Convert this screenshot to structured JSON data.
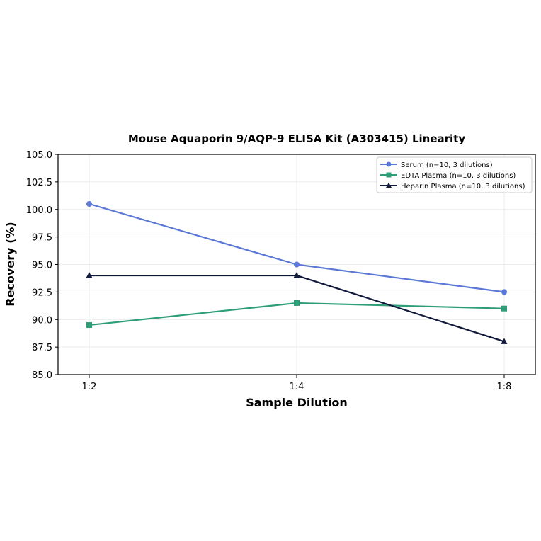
{
  "chart_data": {
    "type": "line",
    "title": "Mouse Aquaporin 9/AQP-9 ELISA Kit (A303415) Linearity",
    "xlabel": "Sample Dilution",
    "ylabel": "Recovery (%)",
    "categories": [
      "1:2",
      "1:4",
      "1:8"
    ],
    "ylim": [
      85.0,
      105.0
    ],
    "yticks": [
      "85.0",
      "87.5",
      "90.0",
      "92.5",
      "95.0",
      "97.5",
      "100.0",
      "102.5",
      "105.0"
    ],
    "grid": true,
    "legend_position": "top-right",
    "series": [
      {
        "name": "Serum (n=10, 3 dilutions)",
        "values": [
          100.5,
          95.0,
          92.5
        ],
        "color": "#5b78d6",
        "marker": "circle"
      },
      {
        "name": "EDTA Plasma (n=10, 3 dilutions)",
        "values": [
          89.5,
          91.5,
          91.0
        ],
        "color": "#2e9e78",
        "marker": "square"
      },
      {
        "name": "Heparin Plasma (n=10, 3 dilutions)",
        "values": [
          94.0,
          94.0,
          88.0
        ],
        "color": "#111a3a",
        "marker": "triangle"
      }
    ]
  }
}
